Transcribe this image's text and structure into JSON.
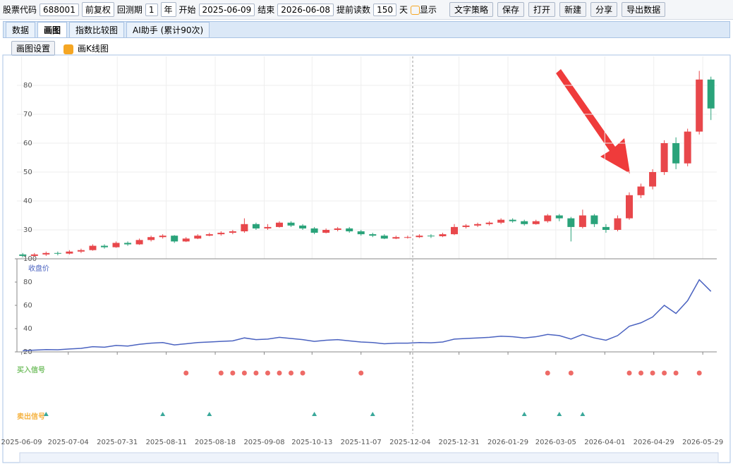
{
  "toolbar": {
    "code_label": "股票代码",
    "code": "688001",
    "adjust": "前复权",
    "period_label": "回测期",
    "period": "1",
    "period_unit": "年",
    "start_label": "开始",
    "start": "2025-06-09",
    "end_label": "结束",
    "end": "2026-06-08",
    "preload_label": "提前读数",
    "preload": "150",
    "preload_unit": "天",
    "show_label": "显示",
    "buttons": [
      "文字策略",
      "保存",
      "打开",
      "新建",
      "分享",
      "导出数据"
    ]
  },
  "tabs": [
    "数据",
    "画图",
    "指数比较图",
    "AI助手 (累计90次)"
  ],
  "settings": {
    "button": "画图设置",
    "checkbox": "画K线图"
  },
  "x_axis": {
    "xlim": [
      0,
      60
    ],
    "xticks": [
      {
        "value": 0.4,
        "label": "2025-06-09"
      },
      {
        "value": 4.4,
        "label": "2025-07-04"
      },
      {
        "value": 8.6,
        "label": "2025-07-31"
      },
      {
        "value": 12.8,
        "label": "2025-08-11"
      },
      {
        "value": 17,
        "label": "2025-08-18"
      },
      {
        "value": 21.2,
        "label": "2025-09-08"
      },
      {
        "value": 25.3,
        "label": "2025-10-13"
      },
      {
        "value": 29.5,
        "label": "2025-11-07"
      },
      {
        "value": 33.7,
        "label": "2025-12-04"
      },
      {
        "value": 37.9,
        "label": "2025-12-31"
      },
      {
        "value": 42.1,
        "label": "2026-01-29"
      },
      {
        "value": 46.2,
        "label": "2026-03-05"
      },
      {
        "value": 50.4,
        "label": "2026-04-01"
      },
      {
        "value": 54.6,
        "label": "2026-04-29"
      },
      {
        "value": 58.8,
        "label": "2026-05-29"
      }
    ]
  },
  "chart_data": [
    {
      "type": "candlestick",
      "up_color": "#e8474b",
      "down_color": "#2aa37a",
      "ylim": [
        20,
        90
      ],
      "yticks": [
        30,
        40,
        50,
        60,
        70,
        80
      ],
      "grid": true,
      "candles": [
        [
          21.5,
          21,
          20.5,
          22
        ],
        [
          21,
          21.5,
          20.8,
          22
        ],
        [
          21.5,
          22,
          21,
          22.5
        ],
        [
          22,
          21.8,
          21.2,
          22.5
        ],
        [
          21.8,
          22.5,
          21.5,
          23
        ],
        [
          22.5,
          23,
          22,
          23.5
        ],
        [
          23,
          24.5,
          22.8,
          25
        ],
        [
          24.5,
          24,
          23.5,
          25
        ],
        [
          24,
          25.5,
          23.8,
          26
        ],
        [
          25.5,
          25,
          24.5,
          26
        ],
        [
          25,
          26.5,
          24.8,
          27
        ],
        [
          26.5,
          27.5,
          26,
          28
        ],
        [
          27.5,
          28,
          27,
          28.5
        ],
        [
          28,
          26,
          25.5,
          28.2
        ],
        [
          26,
          27,
          25.8,
          27.5
        ],
        [
          27,
          28,
          26.8,
          28.5
        ],
        [
          28,
          28.5,
          27.8,
          29
        ],
        [
          28.5,
          29,
          28,
          29.5
        ],
        [
          29,
          29.5,
          28.5,
          30
        ],
        [
          29.5,
          32,
          29,
          34
        ],
        [
          32,
          30.5,
          30,
          32.5
        ],
        [
          30.5,
          31,
          30,
          32
        ],
        [
          31,
          32.5,
          30.8,
          33
        ],
        [
          32.5,
          31.5,
          31,
          33
        ],
        [
          31.5,
          30.5,
          30,
          32
        ],
        [
          30.5,
          29,
          28.5,
          31
        ],
        [
          29,
          30,
          28.8,
          30.5
        ],
        [
          30,
          30.5,
          29.5,
          31
        ],
        [
          30.5,
          29.5,
          29,
          31
        ],
        [
          29.5,
          28.5,
          28,
          30
        ],
        [
          28.5,
          28,
          27.5,
          29
        ],
        [
          28,
          27,
          26.8,
          28.5
        ],
        [
          27,
          27.5,
          26.8,
          28
        ],
        [
          27.5,
          27.5,
          27,
          28
        ],
        [
          27.5,
          28,
          27.2,
          28.5
        ],
        [
          28,
          27.8,
          27.2,
          28.5
        ],
        [
          27.8,
          28.5,
          27.5,
          29
        ],
        [
          28.5,
          31,
          28.2,
          32
        ],
        [
          31,
          31.5,
          30.5,
          32
        ],
        [
          31.5,
          32,
          31,
          32.5
        ],
        [
          32,
          32.5,
          31.5,
          33
        ],
        [
          32.5,
          33.5,
          32,
          34
        ],
        [
          33.5,
          33,
          32.5,
          34
        ],
        [
          33,
          32,
          31.5,
          33.5
        ],
        [
          32,
          33,
          31.8,
          33.5
        ],
        [
          33,
          35,
          32.5,
          35.5
        ],
        [
          35,
          34,
          33,
          35.5
        ],
        [
          34,
          31,
          26,
          34.5
        ],
        [
          31,
          35,
          30.5,
          37
        ],
        [
          35,
          32,
          31,
          35.5
        ],
        [
          31,
          30,
          29,
          32
        ],
        [
          30,
          34,
          29.5,
          35
        ],
        [
          34,
          42,
          33.5,
          43
        ],
        [
          42,
          45,
          41,
          46
        ],
        [
          45,
          50,
          44,
          51
        ],
        [
          50,
          60,
          49,
          61
        ],
        [
          60,
          53,
          51,
          62
        ],
        [
          53,
          64,
          52,
          65
        ],
        [
          64,
          82,
          63,
          85
        ],
        [
          82,
          72,
          68,
          83
        ]
      ]
    },
    {
      "type": "line",
      "name": "收盘价",
      "color": "#4a62c0",
      "ylim": [
        20,
        100
      ],
      "yticks": [
        20,
        40,
        60,
        80,
        100
      ]
    },
    {
      "type": "signals",
      "buy_label": "买入信号",
      "sell_label": "卖出信号",
      "buy_color": "#ee6a66",
      "sell_color": "#3aa89a",
      "buy": [
        14,
        17,
        18,
        19,
        20,
        21,
        22,
        23,
        24,
        29,
        45,
        47,
        52,
        53,
        54,
        55,
        56,
        58
      ],
      "sell": [
        2,
        12,
        16,
        25,
        30,
        43,
        46,
        48
      ]
    }
  ]
}
